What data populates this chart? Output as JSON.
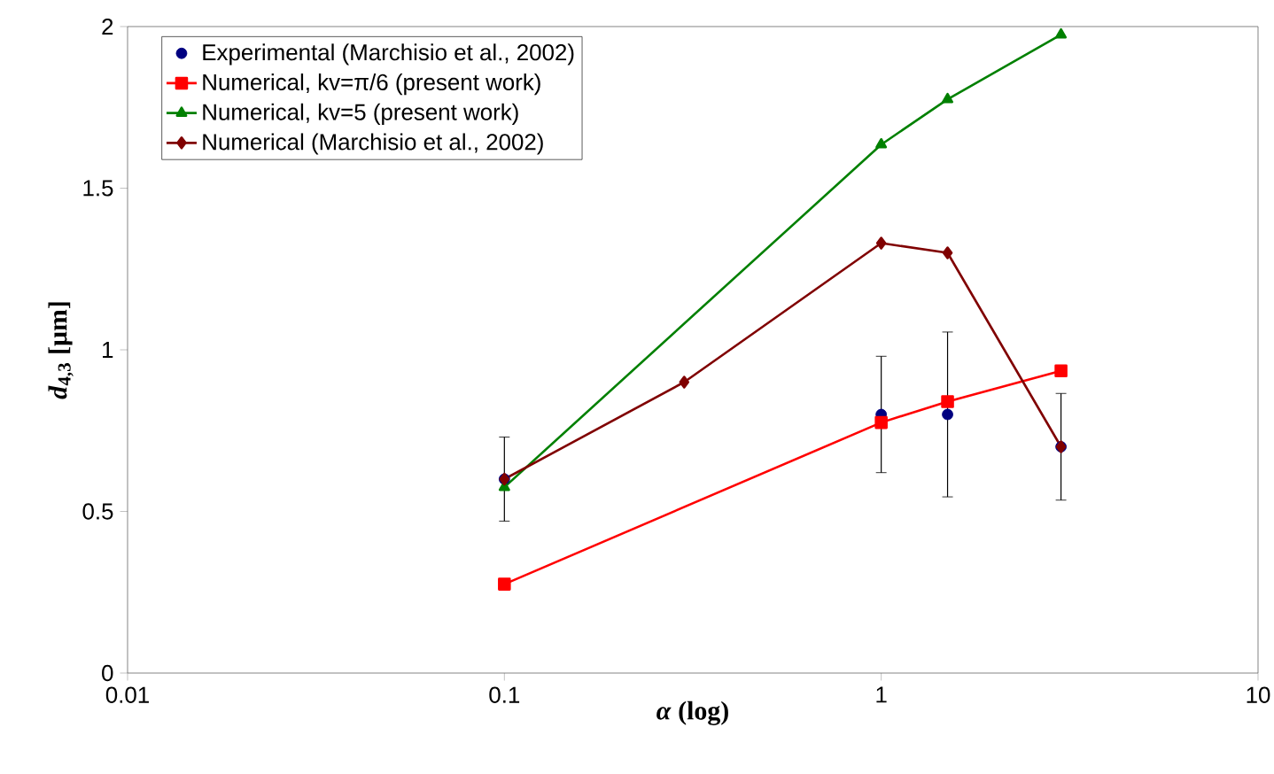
{
  "chart_data": {
    "type": "line",
    "xlabel": "*α* (log)",
    "ylabel": "*d*$_{4,3}$ [μm]",
    "log": "x",
    "xlim": [
      0.01,
      10
    ],
    "xticks": [
      0.01,
      0.1,
      1,
      10
    ],
    "ylim": [
      0,
      2
    ],
    "yticks": [
      0,
      0.5,
      1,
      1.5,
      2
    ],
    "grid": false,
    "legend": "top left",
    "series": [
      {
        "name": "Experimental (Marchisio et al., 2002)",
        "type": "scatter",
        "marker": "circle",
        "color": "#000080",
        "x": [
          0.1,
          1,
          1.5,
          3
        ],
        "values": [
          0.6,
          0.8,
          0.8,
          0.7
        ],
        "errors": [
          [
            0.47,
            0.73
          ],
          [
            0.62,
            0.98
          ],
          [
            0.545,
            1.055
          ],
          [
            0.535,
            0.865
          ]
        ]
      },
      {
        "name": "Numerical, kv=π/6 (present work)",
        "marker": "square",
        "color": "#ff0000",
        "x": [
          0.1,
          1,
          1.5,
          3
        ],
        "values": [
          0.275,
          0.775,
          0.84,
          0.935
        ]
      },
      {
        "name": "Numerical, kv=5 (present work)",
        "marker": "triangle",
        "color": "#008000",
        "x": [
          0.1,
          1,
          1.5,
          3
        ],
        "values": [
          0.575,
          1.635,
          1.775,
          1.975
        ]
      },
      {
        "name": "Numerical (Marchisio et al., 2002)",
        "marker": "diamond",
        "color": "#800000",
        "x": [
          0.1,
          0.3,
          1,
          1.5,
          3
        ],
        "values": [
          0.6,
          0.9,
          1.33,
          1.3,
          0.7
        ]
      }
    ]
  }
}
